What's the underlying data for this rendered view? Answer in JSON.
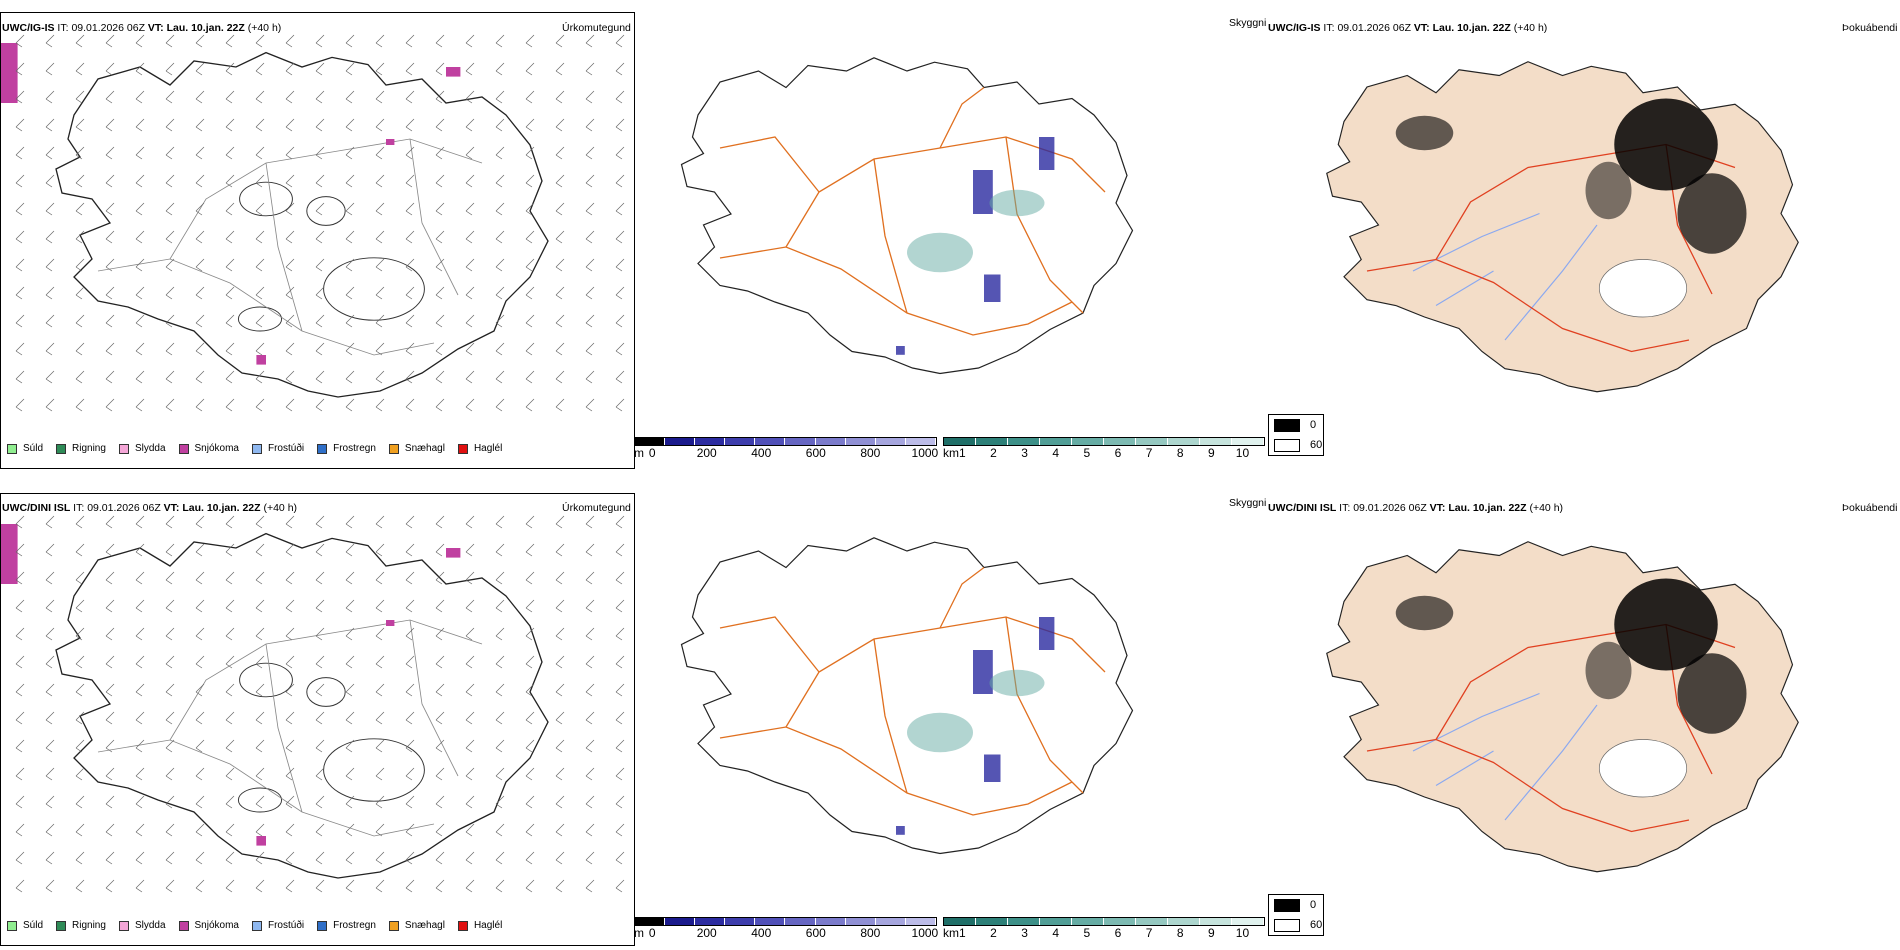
{
  "rows": [
    {
      "id": "top",
      "model": "UWC/IG-IS",
      "it_label": "IT:",
      "it_value": "09.01.2026 06Z",
      "vt_label": "VT:",
      "vt_value": "Lau. 10.jan. 22Z",
      "lead": "(+40 h)"
    },
    {
      "id": "bottom",
      "model": "UWC/DINI ISL",
      "it_label": "IT:",
      "it_value": "09.01.2026 06Z",
      "vt_label": "VT:",
      "vt_value": "Lau. 10.jan. 22Z",
      "lead": "(+40 h)"
    }
  ],
  "titles": {
    "precip_type": "Úrkomutegund",
    "visibility": "Skyggni",
    "fog": "Þokuábendi"
  },
  "precip_legend": [
    {
      "label": "Súld",
      "color": "#90ee90"
    },
    {
      "label": "Rigning",
      "color": "#2e8b57"
    },
    {
      "label": "Slydda",
      "color": "#f4a6d7"
    },
    {
      "label": "Snjókoma",
      "color": "#c040a0"
    },
    {
      "label": "Frostúði",
      "color": "#8fb8f0"
    },
    {
      "label": "Frostregn",
      "color": "#2f6fc8"
    },
    {
      "label": "Snæhagl",
      "color": "#f0a020"
    },
    {
      "label": "Haglél",
      "color": "#e01010"
    }
  ],
  "visibility_m_bar": {
    "unit": "m",
    "ticks": [
      "0",
      "200",
      "400",
      "600",
      "800",
      "1000"
    ],
    "colors": [
      "#000000",
      "#1a1a8c",
      "#2b2ba0",
      "#3d3dac",
      "#5050b8",
      "#6666c2",
      "#7b7bcb",
      "#9090d4",
      "#a6a6de",
      "#bcbce8"
    ]
  },
  "visibility_km_bar": {
    "unit": "km",
    "ticks": [
      "1",
      "2",
      "3",
      "4",
      "5",
      "6",
      "7",
      "8",
      "9",
      "10"
    ],
    "colors": [
      "#1f6f68",
      "#2d8078",
      "#3d9088",
      "#519e96",
      "#66aca4",
      "#7dbab2",
      "#95c8c0",
      "#add6ce",
      "#c6e4dd",
      "#e0f2ee"
    ]
  },
  "fog_legend": [
    {
      "label": "0",
      "color": "#000000"
    },
    {
      "label": "60",
      "color": "#ffffff"
    }
  ],
  "map": {
    "land_color": "#f3ddc8",
    "road_color": "#e07020",
    "red_road_color": "#e04020",
    "river_color": "#8aa8f0",
    "snow_color": "#c040a0",
    "vis_blue": "#2b2ba0",
    "vis_teal": "#66aca4"
  }
}
